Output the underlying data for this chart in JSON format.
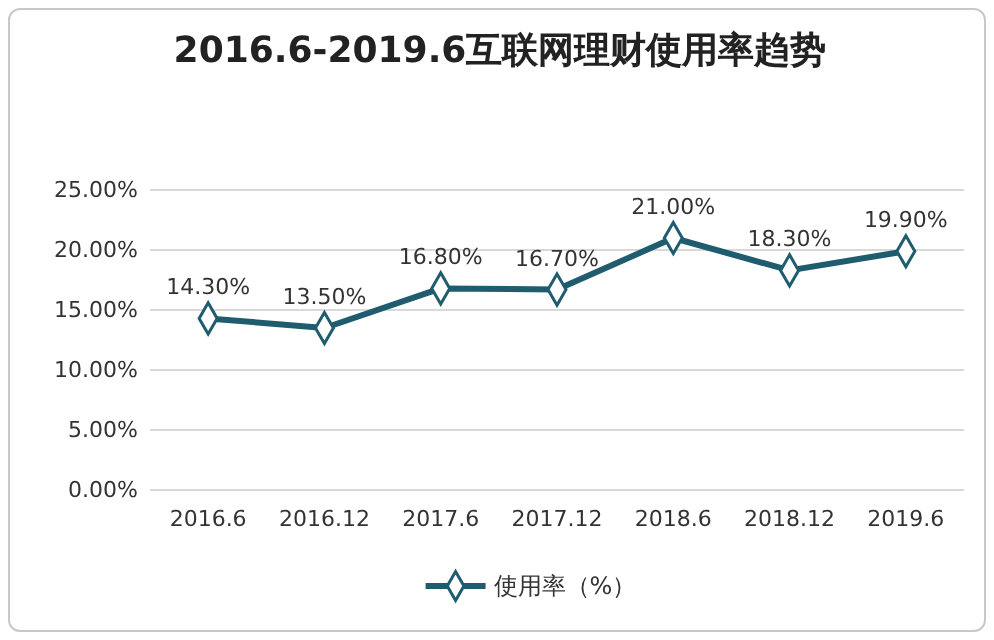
{
  "chart_data": {
    "type": "line",
    "title": "2016.6-2019.6互联网理财使用率趋势",
    "categories": [
      "2016.6",
      "2016.12",
      "2017.6",
      "2017.12",
      "2018.6",
      "2018.12",
      "2019.6"
    ],
    "series": [
      {
        "name": "使用率（%）",
        "color": "#1f5c6e",
        "values": [
          14.3,
          13.5,
          16.8,
          16.7,
          21.0,
          18.3,
          19.9
        ],
        "value_labels": [
          "14.30%",
          "13.50%",
          "16.80%",
          "16.70%",
          "21.00%",
          "18.30%",
          "19.90%"
        ]
      }
    ],
    "ylim": [
      0,
      25
    ],
    "yticks": [
      {
        "value": 0,
        "label": "0.00%"
      },
      {
        "value": 5,
        "label": "5.00%"
      },
      {
        "value": 10,
        "label": "10.00%"
      },
      {
        "value": 15,
        "label": "15.00%"
      },
      {
        "value": 20,
        "label": "20.00%"
      },
      {
        "value": 25,
        "label": "25.00%"
      }
    ],
    "grid": "y",
    "legend": "bottom",
    "marker": "diamond",
    "line_style": "solid"
  }
}
